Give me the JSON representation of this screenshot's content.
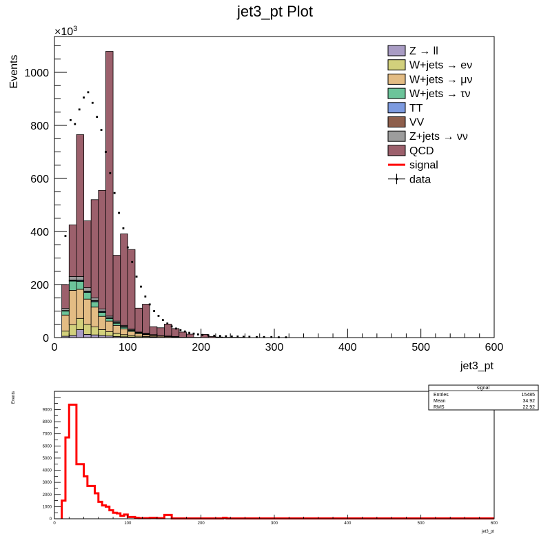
{
  "chart_data": [
    {
      "type": "bar",
      "variant": "stacked-histogram",
      "title": "jet3_pt Plot",
      "xlabel": "jet3_pt",
      "ylabel": "Events",
      "y_multiplier": "×10",
      "y_exponent": "3",
      "xlim": [
        0,
        600
      ],
      "ylim": [
        0,
        1135
      ],
      "xticks": [
        "0",
        "100",
        "200",
        "300",
        "400",
        "500",
        "600"
      ],
      "yticks": [
        "0",
        "200",
        "400",
        "600",
        "800",
        "1000"
      ],
      "legend_position": "top-right",
      "bins": [
        10,
        20,
        30,
        40,
        50,
        60,
        70,
        80,
        90,
        100,
        110,
        120,
        130,
        140,
        150,
        160,
        170,
        180,
        190,
        200,
        210,
        220,
        230,
        240,
        250,
        260,
        270,
        280,
        290,
        300,
        310,
        320
      ],
      "stack": [
        {
          "name": "Z → ll",
          "color": "#a99cc4",
          "values": [
            5,
            8,
            30,
            12,
            10,
            8,
            6,
            4,
            3,
            2,
            1,
            1,
            1,
            0,
            0,
            0,
            0,
            0,
            0,
            0,
            0,
            0,
            0,
            0,
            0,
            0,
            0,
            0,
            0,
            0,
            0
          ]
        },
        {
          "name": "W+jets → eν",
          "color": "#d2d07c",
          "values": [
            20,
            40,
            42,
            38,
            30,
            22,
            16,
            12,
            8,
            6,
            4,
            3,
            2,
            1,
            1,
            1,
            0,
            0,
            0,
            0,
            0,
            0,
            0,
            0,
            0,
            0,
            0,
            0,
            0,
            0,
            0
          ]
        },
        {
          "name": "W+jets → μν",
          "color": "#e3bc84",
          "values": [
            60,
            130,
            110,
            95,
            75,
            50,
            40,
            30,
            22,
            15,
            10,
            7,
            5,
            4,
            3,
            2,
            1,
            1,
            1,
            0,
            0,
            0,
            0,
            0,
            0,
            0,
            0,
            0,
            0,
            0,
            0
          ]
        },
        {
          "name": "W+jets → τν",
          "color": "#6cc49a",
          "values": [
            15,
            35,
            30,
            25,
            20,
            15,
            10,
            8,
            6,
            4,
            3,
            2,
            1,
            1,
            1,
            0,
            0,
            0,
            0,
            0,
            0,
            0,
            0,
            0,
            0,
            0,
            0,
            0,
            0,
            0,
            0
          ]
        },
        {
          "name": "TT",
          "color": "#7d9be0",
          "values": [
            1,
            2,
            3,
            3,
            3,
            3,
            2,
            2,
            2,
            1,
            1,
            1,
            1,
            0,
            0,
            0,
            0,
            0,
            0,
            0,
            0,
            0,
            0,
            0,
            0,
            0,
            0,
            0,
            0,
            0,
            0
          ]
        },
        {
          "name": "VV",
          "color": "#8e5f4c",
          "values": [
            1,
            2,
            2,
            2,
            2,
            2,
            1,
            1,
            1,
            1,
            0,
            0,
            0,
            0,
            0,
            0,
            0,
            0,
            0,
            0,
            0,
            0,
            0,
            0,
            0,
            0,
            0,
            0,
            0,
            0,
            0
          ]
        },
        {
          "name": "Z+jets → νν",
          "color": "#9d9d9d",
          "values": [
            8,
            13,
            13,
            13,
            10,
            8,
            6,
            5,
            4,
            3,
            2,
            2,
            1,
            1,
            1,
            1,
            0,
            0,
            0,
            0,
            0,
            0,
            0,
            0,
            0,
            0,
            0,
            0,
            0,
            0,
            0
          ]
        },
        {
          "name": "QCD",
          "color": "#9c606c",
          "values": [
            90,
            195,
            535,
            252,
            370,
            447,
            998,
            248,
            345,
            300,
            90,
            110,
            30,
            30,
            45,
            30,
            20,
            12,
            0,
            12,
            4,
            2,
            1,
            1,
            1,
            0,
            0,
            0,
            0,
            0,
            0
          ]
        }
      ],
      "signal": {
        "name": "signal",
        "color": "#ff0000"
      },
      "data": {
        "name": "data",
        "points": [
          {
            "x": 15,
            "y": 383
          },
          {
            "x": 22,
            "y": 820
          },
          {
            "x": 28,
            "y": 805
          },
          {
            "x": 34,
            "y": 860
          },
          {
            "x": 40,
            "y": 905
          },
          {
            "x": 46,
            "y": 925
          },
          {
            "x": 52,
            "y": 885
          },
          {
            "x": 58,
            "y": 832
          },
          {
            "x": 64,
            "y": 783
          },
          {
            "x": 70,
            "y": 700
          },
          {
            "x": 76,
            "y": 620
          },
          {
            "x": 82,
            "y": 545
          },
          {
            "x": 88,
            "y": 470
          },
          {
            "x": 94,
            "y": 412
          },
          {
            "x": 100,
            "y": 340
          },
          {
            "x": 106,
            "y": 285
          },
          {
            "x": 112,
            "y": 230
          },
          {
            "x": 118,
            "y": 192
          },
          {
            "x": 124,
            "y": 155
          },
          {
            "x": 130,
            "y": 125
          },
          {
            "x": 136,
            "y": 100
          },
          {
            "x": 142,
            "y": 82
          },
          {
            "x": 148,
            "y": 66
          },
          {
            "x": 154,
            "y": 53
          },
          {
            "x": 160,
            "y": 42
          },
          {
            "x": 166,
            "y": 34
          },
          {
            "x": 172,
            "y": 28
          },
          {
            "x": 178,
            "y": 23
          },
          {
            "x": 184,
            "y": 18
          },
          {
            "x": 190,
            "y": 15
          },
          {
            "x": 196,
            "y": 12
          },
          {
            "x": 202,
            "y": 10
          },
          {
            "x": 210,
            "y": 8
          },
          {
            "x": 218,
            "y": 7
          },
          {
            "x": 226,
            "y": 6
          },
          {
            "x": 234,
            "y": 5
          },
          {
            "x": 242,
            "y": 4
          },
          {
            "x": 250,
            "y": 4
          },
          {
            "x": 258,
            "y": 3
          },
          {
            "x": 266,
            "y": 3
          },
          {
            "x": 276,
            "y": 2
          },
          {
            "x": 286,
            "y": 2
          },
          {
            "x": 296,
            "y": 2
          },
          {
            "x": 306,
            "y": 1
          },
          {
            "x": 316,
            "y": 1
          }
        ]
      }
    },
    {
      "type": "bar",
      "variant": "step-histogram",
      "title": "",
      "xlabel": "jet3_pt",
      "ylabel": "Events",
      "xlim": [
        0,
        600
      ],
      "ylim": [
        0,
        10500
      ],
      "xticks": [
        "0",
        "100",
        "200",
        "300",
        "400",
        "500",
        "600"
      ],
      "yticks": [
        "0",
        "1000",
        "2000",
        "3000",
        "4000",
        "5000",
        "6000",
        "7000",
        "8000",
        "9000"
      ],
      "series": [
        {
          "name": "signal",
          "color": "#ff0000",
          "bin_width": 5,
          "bin_start": 10,
          "values": [
            1500,
            6700,
            9400,
            9400,
            4500,
            4500,
            3500,
            2700,
            2700,
            2100,
            1400,
            1100,
            1000,
            700,
            500,
            450,
            250,
            350,
            150,
            150,
            80,
            50,
            50,
            50,
            80,
            80,
            50,
            50,
            320,
            320,
            30,
            30,
            30,
            30,
            30,
            30,
            30,
            30,
            30,
            30,
            30,
            30,
            30,
            30,
            80,
            30,
            30,
            30,
            30,
            30,
            30,
            30,
            30,
            30,
            30,
            30,
            30,
            30,
            30,
            30,
            30,
            30,
            30,
            30,
            30,
            30,
            30,
            30,
            30,
            30,
            30,
            30,
            30,
            30,
            30,
            30,
            30,
            30,
            30,
            30,
            30,
            30,
            30,
            30,
            30,
            30,
            30,
            30,
            30,
            30,
            30,
            30,
            30,
            30,
            30,
            30,
            30,
            30,
            30,
            30,
            30,
            30,
            30,
            30,
            30,
            30,
            30,
            30,
            30,
            30,
            30,
            30,
            30,
            30,
            30,
            30,
            30,
            30
          ]
        }
      ],
      "stats_box": {
        "title": "signal",
        "rows": [
          {
            "label": "Entries",
            "value": "15485"
          },
          {
            "label": "Mean",
            "value": "34.92"
          },
          {
            "label": "RMS",
            "value": "22.92"
          }
        ]
      }
    }
  ]
}
